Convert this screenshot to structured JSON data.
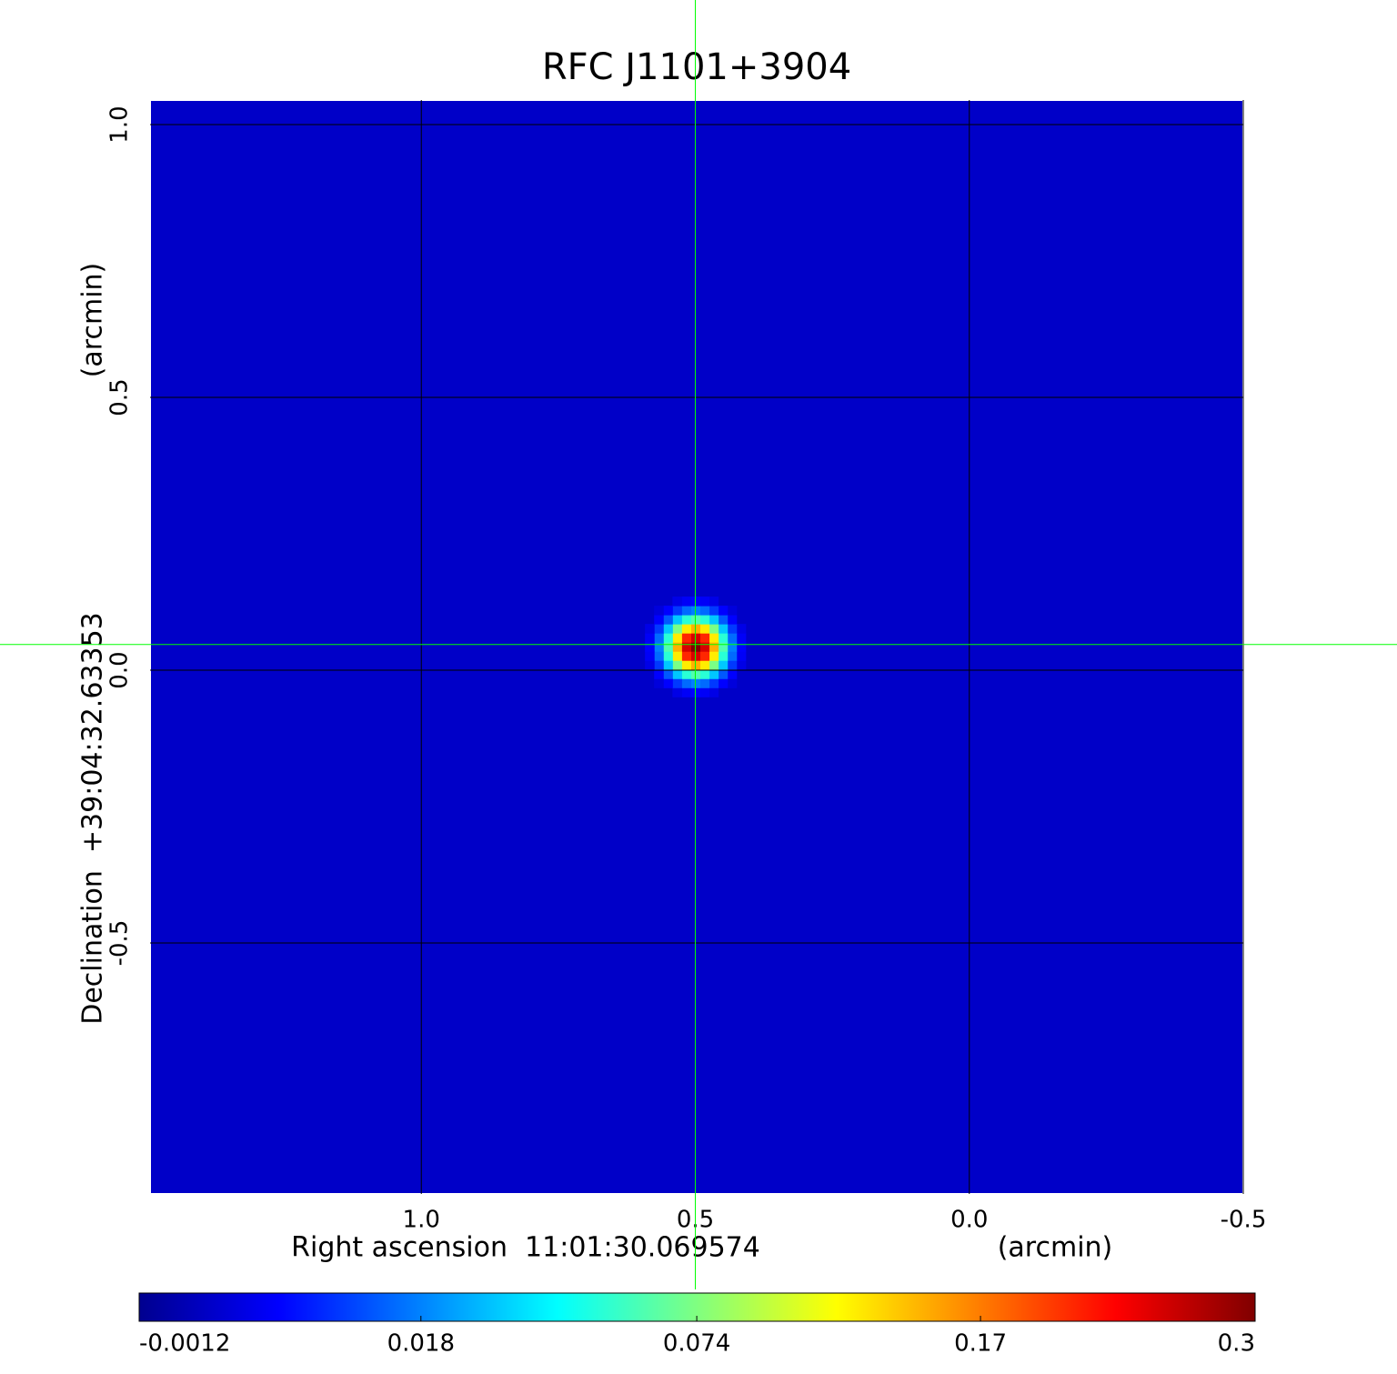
{
  "chart_data": {
    "type": "image",
    "title": "RFC J1101+3904",
    "xlabel": "Right ascension  11:01:30.069574",
    "xunit": "(arcmin)",
    "ylabel": "Declination  +39:04:32.63353",
    "yunit": "(arcmin)",
    "xlim": [
      1.495,
      -0.5
    ],
    "ylim": [
      -0.96,
      1.045
    ],
    "xticks": [
      {
        "value": 1,
        "label": "1.0"
      },
      0.5,
      {
        "value": 0,
        "label": "0.0"
      },
      -0.5
    ],
    "yticks": [
      {
        "value": 1,
        "label": "1.0"
      },
      0.5,
      {
        "value": 0,
        "label": "0.0"
      },
      -0.5
    ],
    "grid": true,
    "background": 0,
    "sources": [
      {
        "x": 0.5,
        "y": 0.043,
        "peak": 0.3,
        "width": 0.028
      }
    ],
    "crosshair": {
      "x": 0.5,
      "y": 0.047,
      "color": "#00ff00"
    },
    "clim": [
      -0.0012,
      0.3
    ],
    "cscale": "sqrt",
    "cticks": [
      -0.0012,
      0.018,
      0.074,
      0.17,
      0.3
    ],
    "colormap": [
      "#00008f",
      "#0000ff",
      "#0080ff",
      "#00ffff",
      "#80ff80",
      "#ffff00",
      "#ff8000",
      "#ff0000",
      "#800000"
    ],
    "title_color": "#0d1adb"
  }
}
